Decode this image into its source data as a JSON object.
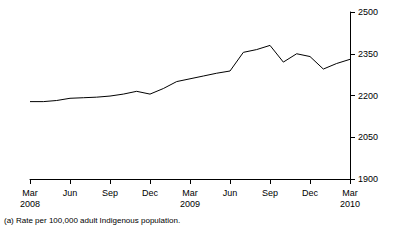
{
  "chart_data": {
    "type": "line",
    "note": "(a) Rate per 100,000 adult Indigenous population.",
    "categories": [
      "Mar\n2008",
      null,
      null,
      "Jun",
      null,
      null,
      "Sep",
      null,
      null,
      "Dec",
      null,
      null,
      "Mar\n2009",
      null,
      null,
      "Jun",
      null,
      null,
      "Sep",
      null,
      null,
      "Dec",
      null,
      null,
      "Mar\n2010"
    ],
    "values": [
      2178,
      2178,
      2182,
      2190,
      2192,
      2194,
      2198,
      2205,
      2215,
      2205,
      2225,
      2250,
      2260,
      2270,
      2280,
      2288,
      2355,
      2365,
      2380,
      2320,
      2350,
      2340,
      2295,
      2315,
      2330
    ],
    "color": "#000000",
    "ylim": [
      1900,
      2500
    ],
    "yticks": [
      1900,
      2050,
      2200,
      2350,
      2500
    ],
    "grid": false
  }
}
